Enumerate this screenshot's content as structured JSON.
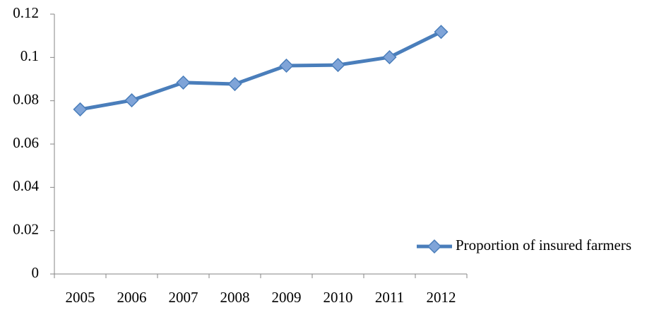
{
  "chart_data": {
    "type": "line",
    "categories": [
      "2005",
      "2006",
      "2007",
      "2008",
      "2009",
      "2010",
      "2011",
      "2012"
    ],
    "series": [
      {
        "name": "Proportion of insured farmers",
        "color": "#4a7ebb",
        "marker_color": "#7fa4d8",
        "values": [
          0.076,
          0.0802,
          0.0884,
          0.0877,
          0.0962,
          0.0965,
          0.1001,
          0.1118
        ]
      }
    ],
    "ylim": [
      0,
      0.12
    ],
    "yticks": [
      0,
      0.02,
      0.04,
      0.06,
      0.08,
      0.1,
      0.12
    ],
    "grid": false,
    "legend": "right"
  }
}
